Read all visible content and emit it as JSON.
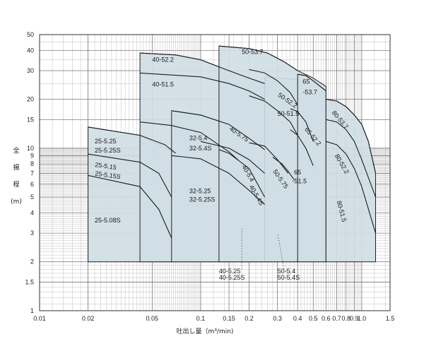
{
  "chart_data": {
    "type": "area",
    "xscale": "log",
    "yscale": "log",
    "xlim": [
      0.01,
      1.5
    ],
    "ylim": [
      1,
      50
    ],
    "grid": true,
    "fill_color": "#cfdfe6",
    "ylabel_chars": [
      "全",
      "揚",
      "程",
      "(m)"
    ],
    "xlabel": "吐出し量（m³/min)",
    "x_ticks": [
      {
        "v": 0.01,
        "t": "0.01"
      },
      {
        "v": 0.02,
        "t": "0.02"
      },
      {
        "v": 0.05,
        "t": "0.05"
      },
      {
        "v": 0.1,
        "t": "0.1"
      },
      {
        "v": 0.15,
        "t": "0.15"
      },
      {
        "v": 0.2,
        "t": "0.2"
      },
      {
        "v": 0.3,
        "t": "0.3"
      },
      {
        "v": 0.4,
        "t": "0.4"
      },
      {
        "v": 0.5,
        "t": "0.5"
      },
      {
        "v": 0.6,
        "t": "0.6"
      },
      {
        "v": 0.7,
        "t": "0.7"
      },
      {
        "v": 0.8,
        "t": "0.8"
      },
      {
        "v": 0.9,
        "t": "0.9"
      },
      {
        "v": 1.0,
        "t": "1.0"
      },
      {
        "v": 1.5,
        "t": "1.5"
      }
    ],
    "y_ticks": [
      {
        "v": 1,
        "t": "1"
      },
      {
        "v": 1.5,
        "t": "1.5"
      },
      {
        "v": 2,
        "t": "2"
      },
      {
        "v": 3,
        "t": "3"
      },
      {
        "v": 4,
        "t": "4"
      },
      {
        "v": 5,
        "t": "5"
      },
      {
        "v": 6,
        "t": "6"
      },
      {
        "v": 7,
        "t": "7"
      },
      {
        "v": 8,
        "t": "8"
      },
      {
        "v": 9,
        "t": "9"
      },
      {
        "v": 10,
        "t": "10"
      },
      {
        "v": 15,
        "t": "15"
      },
      {
        "v": 20,
        "t": "20"
      },
      {
        "v": 30,
        "t": "30"
      },
      {
        "v": 40,
        "t": "40"
      },
      {
        "v": 50,
        "t": "50"
      }
    ],
    "regions": [
      {
        "outline": [
          [
            0.02,
            2
          ],
          [
            0.02,
            13.5
          ],
          [
            0.042,
            12
          ],
          [
            0.07,
            9.3
          ],
          [
            0.07,
            2
          ]
        ]
      },
      {
        "outline": [
          [
            0.042,
            2
          ],
          [
            0.042,
            38.5
          ],
          [
            0.07,
            37.5
          ],
          [
            0.1,
            35
          ],
          [
            0.15,
            30
          ],
          [
            0.25,
            25
          ],
          [
            0.25,
            2
          ]
        ]
      },
      {
        "outline": [
          [
            0.066,
            2
          ],
          [
            0.066,
            17
          ],
          [
            0.1,
            16
          ],
          [
            0.15,
            14
          ],
          [
            0.2,
            11.5
          ],
          [
            0.25,
            9.8
          ],
          [
            0.25,
            2
          ]
        ]
      },
      {
        "outline": [
          [
            0.25,
            2
          ],
          [
            0.25,
            27.5
          ],
          [
            0.4,
            26.5
          ],
          [
            0.4,
            2
          ]
        ]
      },
      {
        "outline": [
          [
            0.13,
            2
          ],
          [
            0.13,
            42.5
          ],
          [
            0.2,
            41
          ],
          [
            0.26,
            38.5
          ],
          [
            0.33,
            34
          ],
          [
            0.4,
            30
          ],
          [
            0.5,
            27
          ],
          [
            0.6,
            24
          ],
          [
            0.6,
            2
          ]
        ]
      },
      {
        "outline": [
          [
            0.4,
            2
          ],
          [
            0.4,
            28.5
          ],
          [
            0.45,
            28
          ],
          [
            0.5,
            26
          ],
          [
            0.6,
            22.5
          ],
          [
            0.6,
            2
          ]
        ]
      },
      {
        "outline": [
          [
            0.6,
            2
          ],
          [
            0.6,
            20
          ],
          [
            0.7,
            19.5
          ],
          [
            0.8,
            18
          ],
          [
            0.9,
            16
          ],
          [
            1.0,
            14
          ],
          [
            1.1,
            11
          ],
          [
            1.22,
            7
          ],
          [
            1.22,
            2
          ]
        ]
      }
    ],
    "curves": [
      {
        "name": "40-52.2",
        "points": [
          [
            0.042,
            38.5
          ],
          [
            0.07,
            37.5
          ],
          [
            0.1,
            35
          ],
          [
            0.15,
            30
          ],
          [
            0.2,
            27
          ],
          [
            0.25,
            25
          ]
        ]
      },
      {
        "name": "40-51.5",
        "points": [
          [
            0.042,
            29
          ],
          [
            0.1,
            27.5
          ],
          [
            0.15,
            25
          ],
          [
            0.2,
            22.5
          ],
          [
            0.25,
            20
          ]
        ]
      },
      {
        "name": "50-53.7",
        "points": [
          [
            0.13,
            42.5
          ],
          [
            0.2,
            41
          ],
          [
            0.26,
            38.5
          ],
          [
            0.33,
            34
          ],
          [
            0.4,
            30
          ]
        ]
      },
      {
        "name": "50-52.2",
        "points": [
          [
            0.2,
            30.5
          ],
          [
            0.25,
            29
          ],
          [
            0.3,
            26
          ],
          [
            0.36,
            22
          ],
          [
            0.4,
            18.5
          ]
        ]
      },
      {
        "name": "50-51.5",
        "points": [
          [
            0.2,
            21
          ],
          [
            0.25,
            19.5
          ],
          [
            0.3,
            17
          ],
          [
            0.36,
            14.5
          ],
          [
            0.4,
            12
          ]
        ]
      },
      {
        "name": "65-53.7",
        "points": [
          [
            0.4,
            28.5
          ],
          [
            0.45,
            28
          ],
          [
            0.5,
            26
          ],
          [
            0.6,
            22.5
          ]
        ]
      },
      {
        "name": "65-52.2",
        "points": [
          [
            0.36,
            17.5
          ],
          [
            0.4,
            16.8
          ],
          [
            0.45,
            14.5
          ],
          [
            0.5,
            11
          ]
        ]
      },
      {
        "name": "65-51.5",
        "points": [
          [
            0.36,
            13
          ],
          [
            0.4,
            12
          ],
          [
            0.45,
            10
          ],
          [
            0.5,
            7.8
          ]
        ]
      },
      {
        "name": "80-53.7",
        "points": [
          [
            0.6,
            20
          ],
          [
            0.7,
            19.5
          ],
          [
            0.8,
            18
          ],
          [
            0.9,
            16
          ],
          [
            1.0,
            14
          ],
          [
            1.1,
            11
          ],
          [
            1.22,
            7
          ]
        ]
      },
      {
        "name": "80-52.2",
        "points": [
          [
            0.6,
            15
          ],
          [
            0.7,
            14.5
          ],
          [
            0.8,
            13
          ],
          [
            0.9,
            11
          ],
          [
            1.0,
            8.5
          ],
          [
            1.22,
            5
          ]
        ]
      },
      {
        "name": "80-51.5",
        "points": [
          [
            0.6,
            11
          ],
          [
            0.7,
            10.5
          ],
          [
            0.8,
            9.2
          ],
          [
            0.9,
            7.5
          ],
          [
            1.0,
            5.8
          ],
          [
            1.22,
            3
          ]
        ]
      },
      {
        "name": "40-5.75",
        "points": [
          [
            0.066,
            17
          ],
          [
            0.1,
            16
          ],
          [
            0.15,
            14
          ],
          [
            0.2,
            11.5
          ],
          [
            0.25,
            9.8
          ]
        ]
      },
      {
        "name": "50-5.75",
        "points": [
          [
            0.2,
            10.8
          ],
          [
            0.25,
            10.3
          ],
          [
            0.3,
            8.5
          ],
          [
            0.35,
            7
          ]
        ]
      },
      {
        "name": "32-5.4",
        "points": [
          [
            0.042,
            14.5
          ],
          [
            0.066,
            13.8
          ],
          [
            0.1,
            12.5
          ],
          [
            0.15,
            9.5
          ],
          [
            0.17,
            8.5
          ]
        ]
      },
      {
        "name": "40-5.4",
        "points": [
          [
            0.1,
            11
          ],
          [
            0.15,
            10
          ],
          [
            0.2,
            8.5
          ],
          [
            0.25,
            7
          ]
        ]
      },
      {
        "name": "32-5.25",
        "points": [
          [
            0.066,
            9
          ],
          [
            0.1,
            8.6
          ],
          [
            0.15,
            7
          ],
          [
            0.2,
            5.5
          ],
          [
            0.25,
            4.5
          ]
        ]
      },
      {
        "name": "40-5.25",
        "points": [
          [
            0.13,
            9.8
          ],
          [
            0.15,
            9.3
          ],
          [
            0.2,
            7.5
          ],
          [
            0.25,
            5
          ]
        ]
      },
      {
        "name": "50-5.4",
        "points": [
          [
            0.28,
            8.8
          ],
          [
            0.32,
            8
          ],
          [
            0.35,
            7.2
          ],
          [
            0.38,
            6.4
          ]
        ]
      },
      {
        "name": "25-5.25",
        "points": [
          [
            0.02,
            13.5
          ],
          [
            0.042,
            12
          ],
          [
            0.06,
            10.5
          ],
          [
            0.07,
            9.3
          ]
        ]
      },
      {
        "name": "25-5.15",
        "points": [
          [
            0.02,
            9.2
          ],
          [
            0.042,
            8.2
          ],
          [
            0.055,
            7
          ],
          [
            0.066,
            5
          ]
        ]
      },
      {
        "name": "25-5.08S",
        "points": [
          [
            0.02,
            6.8
          ],
          [
            0.042,
            5.8
          ],
          [
            0.055,
            4.2
          ],
          [
            0.066,
            2.8
          ]
        ]
      }
    ],
    "labels": [
      {
        "text": "40-52.2",
        "x": 0.05,
        "y": 34
      },
      {
        "text": "40-51.5",
        "x": 0.05,
        "y": 24
      },
      {
        "text": "50-53.7",
        "x": 0.18,
        "y": 38
      },
      {
        "text": "50-52.2",
        "x": 0.3,
        "y": 21,
        "rot": 35
      },
      {
        "text": "50-51.5",
        "x": 0.3,
        "y": 15.8
      },
      {
        "text": "65",
        "x": 0.43,
        "y": 25
      },
      {
        "text": "-53.7",
        "x": 0.43,
        "y": 21.5
      },
      {
        "text": "65-52.2",
        "x": 0.44,
        "y": 13,
        "rot": 50
      },
      {
        "text": "80-53.7",
        "x": 0.65,
        "y": 16.5,
        "rot": 50
      },
      {
        "text": "40-5.75",
        "x": 0.15,
        "y": 13,
        "rot": 35
      },
      {
        "text": "32-5.4",
        "x": 0.085,
        "y": 11.2
      },
      {
        "text": "32-5.4S",
        "x": 0.085,
        "y": 9.7
      },
      {
        "text": "80-52.2",
        "x": 0.68,
        "y": 9,
        "rot": 60
      },
      {
        "text": "50-5.75",
        "x": 0.28,
        "y": 7.2,
        "rot": 55
      },
      {
        "text": "40-5.4",
        "x": 0.18,
        "y": 7.7,
        "rot": 60
      },
      {
        "text": "40-5.4S",
        "x": 0.2,
        "y": 5.8,
        "rot": 60
      },
      {
        "text": "65",
        "x": 0.38,
        "y": 6.9
      },
      {
        "text": "-51.5",
        "x": 0.37,
        "y": 6.1
      },
      {
        "text": "80-51.5",
        "x": 0.7,
        "y": 4.7,
        "rot": 75
      },
      {
        "text": "25-5.25",
        "x": 0.022,
        "y": 10.7
      },
      {
        "text": "25-5.25S",
        "x": 0.022,
        "y": 9.4
      },
      {
        "text": "25-5.15",
        "x": 0.022,
        "y": 7.7,
        "rot": 8
      },
      {
        "text": "25-5.15S",
        "x": 0.022,
        "y": 6.8,
        "rot": 8
      },
      {
        "text": "32-5.25",
        "x": 0.085,
        "y": 5.3
      },
      {
        "text": "32-5.25S",
        "x": 0.085,
        "y": 4.7
      },
      {
        "text": "25-5.08S",
        "x": 0.022,
        "y": 3.5
      },
      {
        "text": "40-5.25",
        "x": 0.13,
        "y": 1.7
      },
      {
        "text": "40-5.25S",
        "x": 0.13,
        "y": 1.55
      },
      {
        "text": "50-5.4",
        "x": 0.3,
        "y": 1.7
      },
      {
        "text": "50-5.4S",
        "x": 0.3,
        "y": 1.55
      }
    ],
    "leaders": [
      {
        "from": [
          0.18,
          1.8
        ],
        "to": [
          0.18,
          3.2
        ]
      },
      {
        "from": [
          0.33,
          1.8
        ],
        "to": [
          0.3,
          3.0
        ]
      }
    ]
  }
}
